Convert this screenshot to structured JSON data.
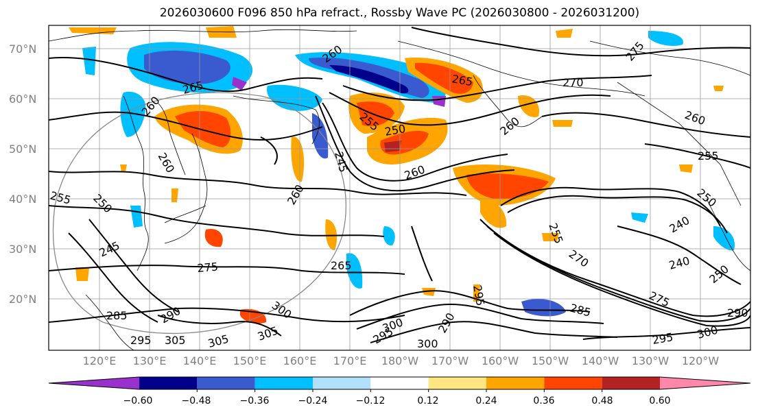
{
  "title": "2026030600 F096 850 hPa refract., Rossby Wave PC (2026030800 - 2026031200)",
  "lat_labels": [
    "70°N",
    "60°N",
    "50°N",
    "40°N",
    "30°N",
    "20°N"
  ],
  "lon_labels": [
    "120°E",
    "130°E",
    "140°E",
    "150°E",
    "160°E",
    "170°E",
    "180°W",
    "170°W",
    "160°W",
    "150°W",
    "140°W",
    "130°W",
    "120°W"
  ],
  "colorbar": {
    "colors": [
      "#9932cc",
      "#00008b",
      "#3a5bd0",
      "#00bfff",
      "#b0e0fa",
      "#ffffff",
      "#ffe680",
      "#ffa500",
      "#ff4500",
      "#b22222",
      "#ff88aa"
    ],
    "ticks": [
      "−0.60",
      "−0.48",
      "−0.36",
      "−0.24",
      "−0.12",
      "0.12",
      "0.24",
      "0.36",
      "0.48",
      "0.60"
    ]
  },
  "contour_labels": [
    "260",
    "265",
    "260",
    "260",
    "270",
    "260",
    "275",
    "260",
    "245",
    "250",
    "255",
    "260",
    "265",
    "255",
    "250",
    "260",
    "245",
    "275",
    "265",
    "285",
    "290",
    "300",
    "305",
    "305",
    "305",
    "295",
    "300",
    "295",
    "290",
    "300",
    "295",
    "285",
    "270",
    "255",
    "240",
    "240",
    "250",
    "275",
    "295",
    "300",
    "250",
    "255",
    "290"
  ]
}
